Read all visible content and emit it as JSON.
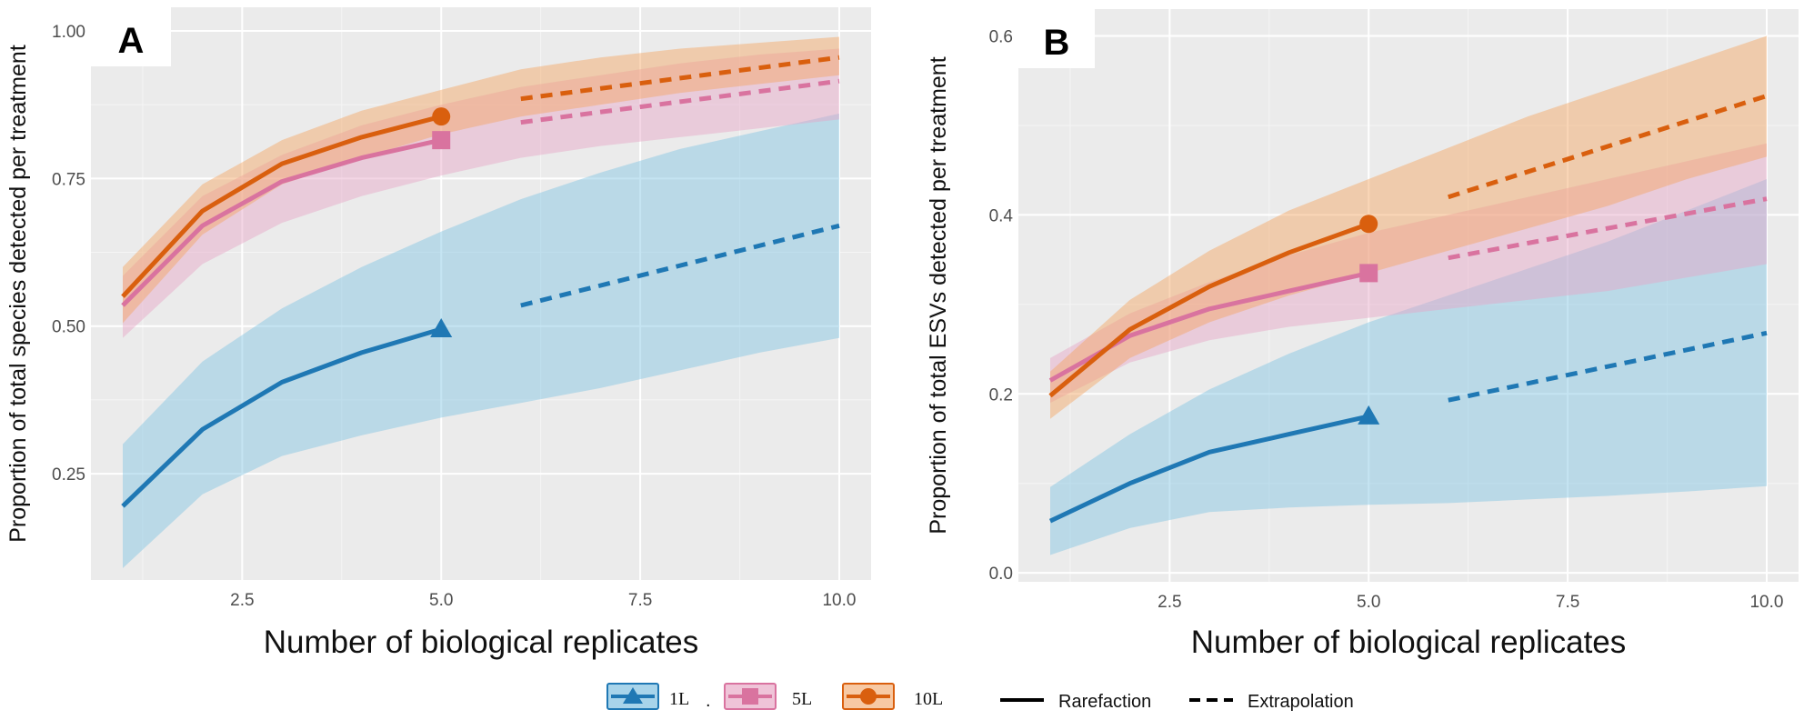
{
  "chart_data": [
    {
      "panel": "A",
      "type": "line",
      "xlabel": "Number of biological replicates",
      "ylabel": "Proportion of total species detected per treatment",
      "xlim": [
        0.6,
        10.4
      ],
      "ylim": [
        0.07,
        1.04
      ],
      "x_ticks": [
        2.5,
        5.0,
        7.5,
        10.0
      ],
      "x_tick_labels": [
        "2.5",
        "5.0",
        "7.5",
        "10.0"
      ],
      "y_ticks": [
        0.25,
        0.5,
        0.75,
        1.0
      ],
      "y_tick_labels": [
        "0.25",
        "0.50",
        "0.75",
        "1.00"
      ],
      "grid": true,
      "series": [
        {
          "name": "1L",
          "color": "#1f78b4",
          "band_color": "#7ec3e3",
          "marker": "triangle",
          "rare_x": [
            1,
            2,
            3,
            4,
            5
          ],
          "rare_y": [
            0.195,
            0.325,
            0.405,
            0.455,
            0.495
          ],
          "extra_x": [
            6,
            10
          ],
          "extra_y": [
            0.535,
            0.67
          ],
          "band_x": [
            1,
            2,
            3,
            4,
            5,
            6,
            7,
            8,
            9,
            10
          ],
          "band_lo": [
            0.09,
            0.215,
            0.28,
            0.315,
            0.345,
            0.37,
            0.395,
            0.425,
            0.455,
            0.48
          ],
          "band_hi": [
            0.3,
            0.44,
            0.53,
            0.6,
            0.66,
            0.715,
            0.76,
            0.8,
            0.83,
            0.86
          ],
          "point_x": 5,
          "point_y": 0.495
        },
        {
          "name": "5L",
          "color": "#d9739f",
          "band_color": "#e6a3c6",
          "marker": "square",
          "rare_x": [
            1,
            2,
            3,
            4,
            5
          ],
          "rare_y": [
            0.535,
            0.67,
            0.745,
            0.785,
            0.815
          ],
          "extra_x": [
            6,
            10
          ],
          "extra_y": [
            0.845,
            0.915
          ],
          "band_x": [
            1,
            2,
            3,
            4,
            5,
            6,
            7,
            8,
            9,
            10
          ],
          "band_lo": [
            0.48,
            0.605,
            0.675,
            0.72,
            0.755,
            0.785,
            0.805,
            0.82,
            0.835,
            0.85
          ],
          "band_hi": [
            0.585,
            0.72,
            0.79,
            0.84,
            0.875,
            0.905,
            0.925,
            0.945,
            0.96,
            0.97
          ],
          "point_x": 5,
          "point_y": 0.815
        },
        {
          "name": "10L",
          "color": "#d95f0e",
          "band_color": "#f4a460",
          "marker": "circle",
          "rare_x": [
            1,
            2,
            3,
            4,
            5
          ],
          "rare_y": [
            0.55,
            0.695,
            0.775,
            0.82,
            0.855
          ],
          "extra_x": [
            6,
            10
          ],
          "extra_y": [
            0.885,
            0.955
          ],
          "band_x": [
            1,
            2,
            3,
            4,
            5,
            6,
            7,
            8,
            9,
            10
          ],
          "band_lo": [
            0.505,
            0.655,
            0.74,
            0.785,
            0.825,
            0.855,
            0.875,
            0.895,
            0.91,
            0.925
          ],
          "band_hi": [
            0.6,
            0.74,
            0.815,
            0.865,
            0.9,
            0.935,
            0.955,
            0.97,
            0.98,
            0.99
          ],
          "point_x": 5,
          "point_y": 0.855
        }
      ]
    },
    {
      "panel": "B",
      "type": "line",
      "xlabel": "Number of biological replicates",
      "ylabel": "Proportion of total ESVs detected per treatment",
      "xlim": [
        0.6,
        10.4
      ],
      "ylim": [
        -0.01,
        0.63
      ],
      "x_ticks": [
        2.5,
        5.0,
        7.5,
        10.0
      ],
      "x_tick_labels": [
        "2.5",
        "5.0",
        "7.5",
        "10.0"
      ],
      "y_ticks": [
        0.0,
        0.2,
        0.4,
        0.6
      ],
      "y_tick_labels": [
        "0.0",
        "0.2",
        "0.4",
        "0.6"
      ],
      "grid": true,
      "series": [
        {
          "name": "1L",
          "color": "#1f78b4",
          "band_color": "#7ec3e3",
          "marker": "triangle",
          "rare_x": [
            1,
            2,
            3,
            4,
            5
          ],
          "rare_y": [
            0.058,
            0.1,
            0.135,
            0.155,
            0.175
          ],
          "extra_x": [
            6,
            10
          ],
          "extra_y": [
            0.193,
            0.268
          ],
          "band_x": [
            1,
            2,
            3,
            4,
            5,
            6,
            7,
            8,
            9,
            10
          ],
          "band_lo": [
            0.02,
            0.05,
            0.068,
            0.073,
            0.076,
            0.078,
            0.082,
            0.086,
            0.091,
            0.097
          ],
          "band_hi": [
            0.096,
            0.155,
            0.205,
            0.245,
            0.28,
            0.31,
            0.34,
            0.37,
            0.405,
            0.44
          ],
          "point_x": 5,
          "point_y": 0.175
        },
        {
          "name": "5L",
          "color": "#d9739f",
          "band_color": "#e6a3c6",
          "marker": "square",
          "rare_x": [
            1,
            2,
            3,
            4,
            5
          ],
          "rare_y": [
            0.215,
            0.265,
            0.295,
            0.315,
            0.335
          ],
          "extra_x": [
            6,
            10
          ],
          "extra_y": [
            0.352,
            0.418
          ],
          "band_x": [
            1,
            2,
            3,
            4,
            5,
            6,
            7,
            8,
            9,
            10
          ],
          "band_lo": [
            0.19,
            0.235,
            0.26,
            0.275,
            0.285,
            0.295,
            0.305,
            0.315,
            0.33,
            0.345
          ],
          "band_hi": [
            0.24,
            0.29,
            0.325,
            0.355,
            0.38,
            0.4,
            0.42,
            0.44,
            0.46,
            0.48
          ],
          "point_x": 5,
          "point_y": 0.335
        },
        {
          "name": "10L",
          "color": "#d95f0e",
          "band_color": "#f4a460",
          "marker": "circle",
          "rare_x": [
            1,
            2,
            3,
            4,
            5
          ],
          "rare_y": [
            0.198,
            0.272,
            0.32,
            0.358,
            0.39
          ],
          "extra_x": [
            6,
            10
          ],
          "extra_y": [
            0.42,
            0.533
          ],
          "band_x": [
            1,
            2,
            3,
            4,
            5,
            6,
            7,
            8,
            9,
            10
          ],
          "band_lo": [
            0.172,
            0.24,
            0.28,
            0.31,
            0.335,
            0.36,
            0.385,
            0.41,
            0.44,
            0.465
          ],
          "band_hi": [
            0.225,
            0.305,
            0.36,
            0.405,
            0.44,
            0.475,
            0.51,
            0.54,
            0.57,
            0.6
          ],
          "point_x": 5,
          "point_y": 0.39
        }
      ]
    }
  ],
  "legend": {
    "treatments": [
      {
        "label": "1L",
        "color": "#1f78b4",
        "fill": "#a8d4ea",
        "marker": "triangle"
      },
      {
        "label": "5L",
        "color": "#d9739f",
        "fill": "#efc4d8",
        "marker": "square"
      },
      {
        "label": "10L",
        "color": "#d95f0e",
        "fill": "#f7c9a4",
        "marker": "circle"
      }
    ],
    "separator": ".",
    "line_types": [
      {
        "label": "Rarefaction",
        "style": "solid"
      },
      {
        "label": "Extrapolation",
        "style": "dashed"
      }
    ]
  }
}
